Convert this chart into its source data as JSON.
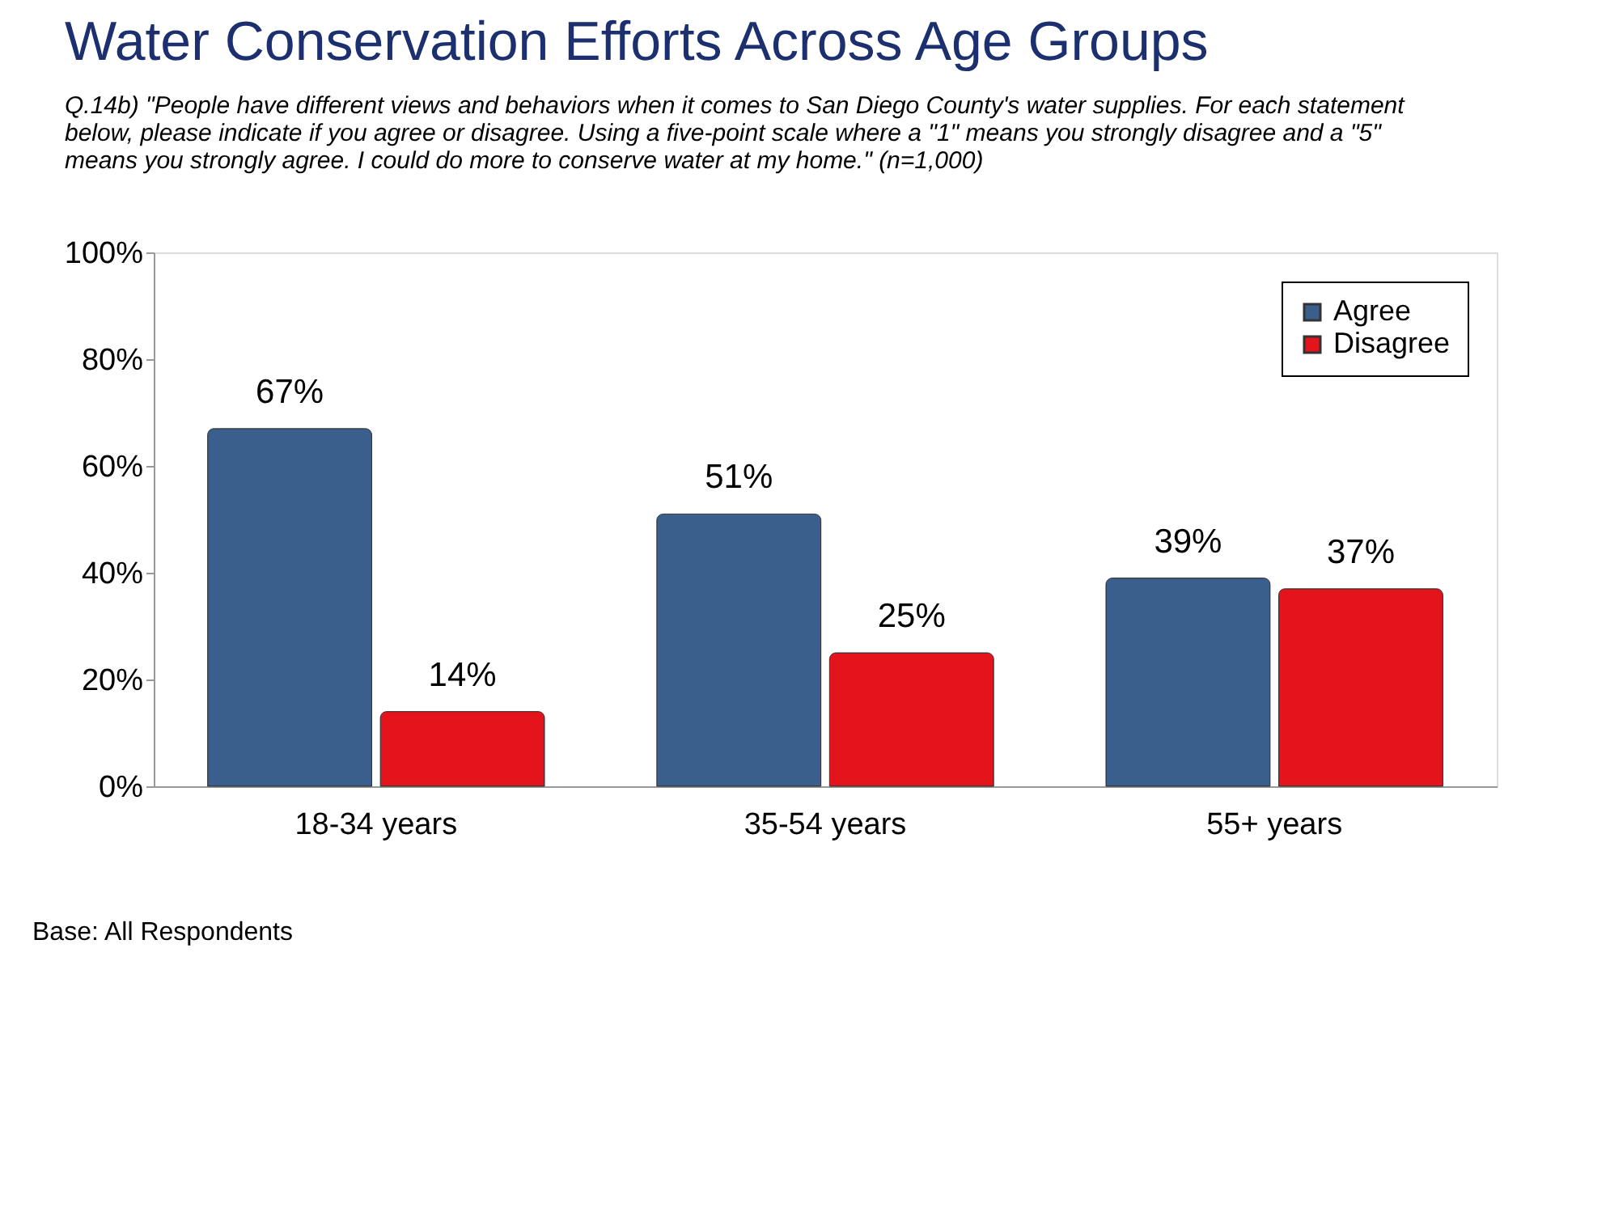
{
  "chart_data": {
    "type": "bar",
    "title": "Water Conservation Efforts Across Age Groups",
    "subtitle": "Q.14b) \"People have different views and behaviors when it comes to San Diego County's water supplies.  For each statement below, please indicate if you agree or disagree. Using a five-point scale where a \"1\" means you strongly disagree and a \"5\" means you strongly agree. I could do more to conserve water at my home.\" (n=1,000)",
    "categories": [
      "18-34 years",
      "35-54 years",
      "55+ years"
    ],
    "series": [
      {
        "name": "Agree",
        "color": "#3b5f8c",
        "values": [
          67,
          51,
          39
        ],
        "value_labels": [
          "67%",
          "51%",
          "39%"
        ]
      },
      {
        "name": "Disagree",
        "color": "#e3141b",
        "values": [
          14,
          25,
          37
        ],
        "value_labels": [
          "14%",
          "25%",
          "37%"
        ]
      }
    ],
    "ylim": [
      0,
      100
    ],
    "yticks": [
      {
        "value": 0,
        "label": "0%"
      },
      {
        "value": 20,
        "label": "20%"
      },
      {
        "value": 40,
        "label": "40%"
      },
      {
        "value": 60,
        "label": "60%"
      },
      {
        "value": 80,
        "label": "80%"
      },
      {
        "value": 100,
        "label": "100%"
      }
    ],
    "legend": "top right",
    "annotations": [
      "Base:  All Respondents"
    ]
  }
}
